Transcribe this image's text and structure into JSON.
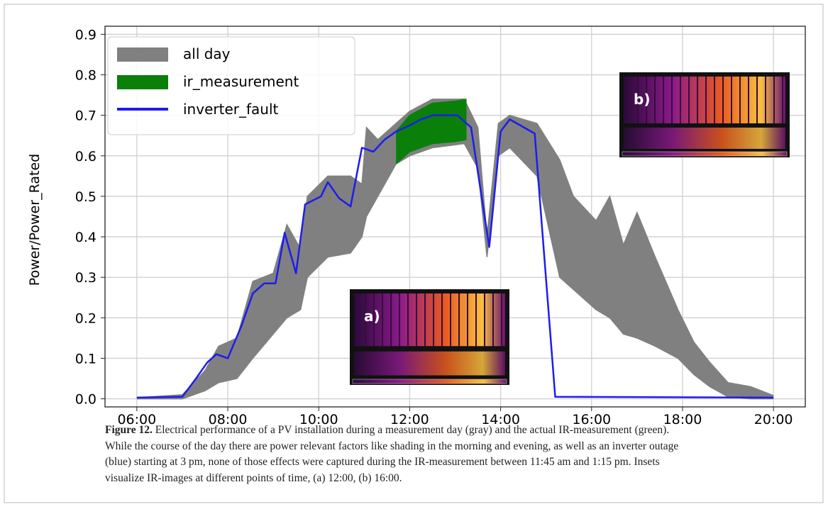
{
  "chart_data": {
    "type": "line",
    "ylabel": "Power/Power_Rated",
    "xlim": [
      5.3,
      20.7
    ],
    "ylim": [
      -0.02,
      0.92
    ],
    "xticks": [
      {
        "value": 6,
        "label": "06:00"
      },
      {
        "value": 8,
        "label": "08:00"
      },
      {
        "value": 10,
        "label": "10:00"
      },
      {
        "value": 12,
        "label": "12:00"
      },
      {
        "value": 14,
        "label": "14:00"
      },
      {
        "value": 16,
        "label": "16:00"
      },
      {
        "value": 18,
        "label": "18:00"
      },
      {
        "value": 20,
        "label": "20:00"
      }
    ],
    "yticks": [
      {
        "value": 0,
        "label": "0.0"
      },
      0.1,
      0.2,
      0.3,
      0.4,
      0.5,
      0.6,
      0.7,
      0.8,
      0.9
    ],
    "grid": true,
    "legend": "upper left",
    "series": [
      {
        "name": "all day",
        "color": "#808080",
        "x": [
          6,
          7,
          7.5,
          7.8,
          8.2,
          8.55,
          9,
          9.3,
          9.6,
          9.75,
          10.2,
          10.7,
          10.95,
          11.05,
          11.3,
          11.7,
          12,
          12.5,
          13.2,
          13.5,
          13.7,
          13.95,
          14.2,
          14.8,
          15.3,
          15.6,
          16.1,
          16.4,
          16.7,
          17,
          17.4,
          17.9,
          18.25,
          18.6,
          19,
          19.5,
          20
        ],
        "values": [
          0.003,
          0.01,
          0.07,
          0.13,
          0.15,
          0.29,
          0.31,
          0.43,
          0.37,
          0.5,
          0.55,
          0.55,
          0.53,
          0.67,
          0.64,
          0.68,
          0.71,
          0.74,
          0.74,
          0.67,
          0.4,
          0.68,
          0.7,
          0.68,
          0.59,
          0.5,
          0.44,
          0.5,
          0.38,
          0.46,
          0.35,
          0.22,
          0.14,
          0.09,
          0.04,
          0.03,
          0.008
        ],
        "lower": [
          0,
          0,
          0.02,
          0.04,
          0.05,
          0.1,
          0.16,
          0.2,
          0.22,
          0.3,
          0.35,
          0.36,
          0.4,
          0.45,
          0.5,
          0.58,
          0.6,
          0.62,
          0.63,
          0.57,
          0.35,
          0.6,
          0.62,
          0.55,
          0.3,
          0.27,
          0.22,
          0.2,
          0.16,
          0.15,
          0.13,
          0.1,
          0.06,
          0.03,
          0.005,
          0,
          0
        ]
      },
      {
        "name": "ir_measurement",
        "color": "#0a800a",
        "x": [
          11.7,
          12,
          12.5,
          13,
          13.25
        ],
        "values": [
          0.66,
          0.7,
          0.73,
          0.735,
          0.74
        ],
        "lower": [
          0.58,
          0.61,
          0.63,
          0.635,
          0.64
        ]
      },
      {
        "name": "inverter_fault",
        "color": "#1c1cf0",
        "x": [
          6,
          7,
          7.3,
          7.55,
          7.75,
          8,
          8.3,
          8.55,
          8.8,
          9.05,
          9.25,
          9.5,
          9.7,
          10.05,
          10.2,
          10.45,
          10.7,
          10.95,
          11.2,
          11.45,
          11.7,
          12,
          12.25,
          12.5,
          12.75,
          13.05,
          13.35,
          13.75,
          14,
          14.2,
          14.75,
          15.2,
          20
        ],
        "values": [
          0.003,
          0.005,
          0.05,
          0.09,
          0.11,
          0.1,
          0.18,
          0.26,
          0.285,
          0.285,
          0.41,
          0.31,
          0.48,
          0.5,
          0.535,
          0.495,
          0.475,
          0.62,
          0.61,
          0.64,
          0.66,
          0.675,
          0.69,
          0.7,
          0.7,
          0.7,
          0.67,
          0.375,
          0.66,
          0.69,
          0.655,
          0.005,
          0.003
        ]
      }
    ],
    "insets": [
      "a)",
      "b)"
    ]
  },
  "caption": {
    "label": "Figure 12.",
    "lines": [
      " Electrical performance of a PV installation during a measurement day (gray) and the actual IR-measurement (green).",
      "While the course of the day there are power relevant factors like shading in the morning and evening, as well as an inverter outage",
      "(blue) starting at 3 pm, none of those effects were captured during the IR-measurement between 11:45 am and 1:15 pm. Insets",
      "visualize IR-images at different points of time, (a) 12:00, (b) 16:00."
    ]
  }
}
